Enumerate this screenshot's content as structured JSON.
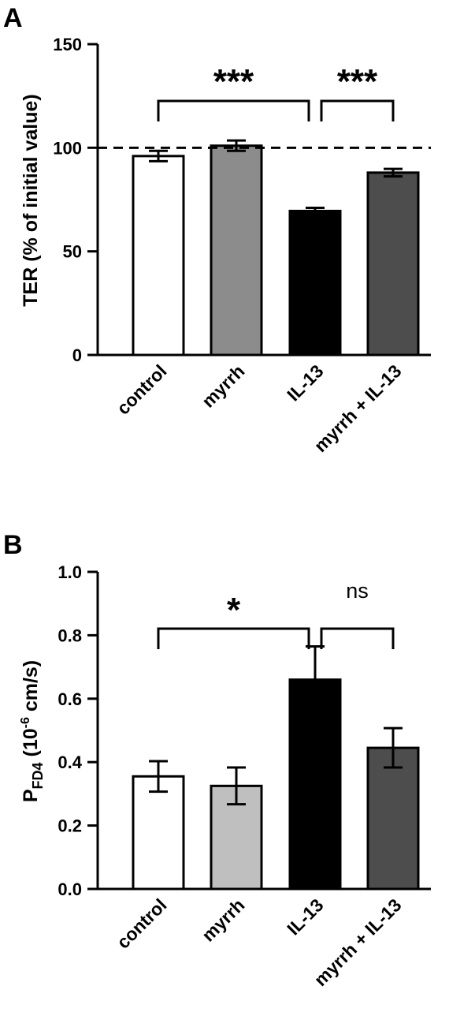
{
  "chart_data": [
    {
      "type": "bar",
      "panel_label": "A",
      "categories": [
        "control",
        "myrrh",
        "IL-13",
        "myrrh + IL-13"
      ],
      "values": [
        96,
        101,
        69.5,
        88
      ],
      "errors": [
        2.5,
        2.5,
        1.5,
        1.8
      ],
      "bar_colors": [
        "#ffffff",
        "#8c8c8c",
        "#000000",
        "#4d4d4d"
      ],
      "ylabel": "TER (% of initial value)",
      "ylim": [
        0,
        150
      ],
      "yticks": [
        0,
        50,
        100,
        150
      ],
      "ytick_labels": [
        "0",
        "50",
        "100",
        "150"
      ],
      "reference_line": {
        "value": 100,
        "style": "dashed"
      },
      "significance": [
        {
          "from": 0,
          "to": 2,
          "label": "***"
        },
        {
          "from": 2,
          "to": 3,
          "label": "***"
        }
      ]
    },
    {
      "type": "bar",
      "panel_label": "B",
      "categories": [
        "control",
        "myrrh",
        "IL-13",
        "myrrh + IL-13"
      ],
      "values": [
        0.355,
        0.325,
        0.66,
        0.445
      ],
      "errors": [
        0.048,
        0.058,
        0.105,
        0.062
      ],
      "bar_colors": [
        "#ffffff",
        "#bfbfbf",
        "#000000",
        "#4d4d4d"
      ],
      "ylabel_main": "P",
      "ylabel_sub": "FD4",
      "ylabel_mid": " (10",
      "ylabel_sup": "-6",
      "ylabel_end": " cm/s)",
      "ylim": [
        0,
        1.0
      ],
      "yticks": [
        0,
        0.2,
        0.4,
        0.6,
        0.8,
        1.0
      ],
      "ytick_labels": [
        "0.0",
        "0.2",
        "0.4",
        "0.6",
        "0.8",
        "1.0"
      ],
      "significance": [
        {
          "from": 0,
          "to": 2,
          "label": "*"
        },
        {
          "from": 2,
          "to": 3,
          "label": "ns"
        }
      ]
    }
  ]
}
